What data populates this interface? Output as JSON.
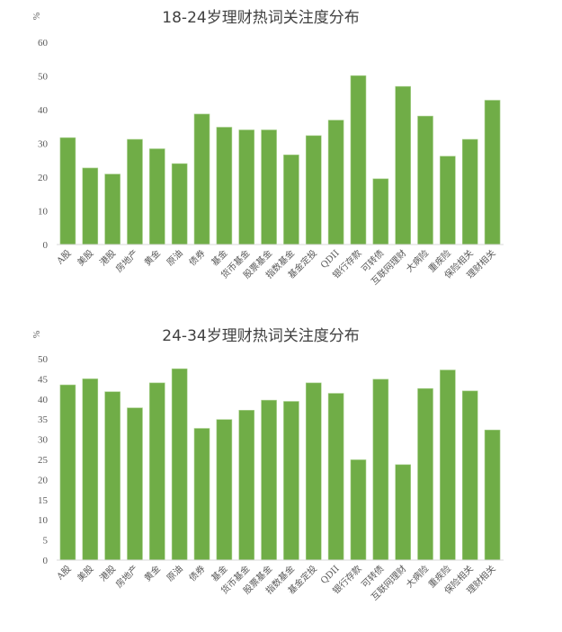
{
  "chart_data": [
    {
      "type": "bar",
      "title": "18-24岁理财热词关注度分布",
      "ylabel": "%",
      "ylim": [
        0,
        60
      ],
      "yticks": [
        0,
        10,
        20,
        30,
        40,
        50,
        60
      ],
      "grid": false,
      "color": "#70AD47",
      "categories": [
        "A股",
        "美股",
        "港股",
        "房地产",
        "黄金",
        "原油",
        "债券",
        "基金",
        "货币基金",
        "股票基金",
        "指数基金",
        "基金定投",
        "QDII",
        "银行存款",
        "可转债",
        "互联网理财",
        "大病险",
        "重疾险",
        "保险相关",
        "理财相关"
      ],
      "values": [
        31.7,
        22.7,
        20.9,
        31.2,
        28.4,
        24.0,
        38.7,
        34.8,
        34.0,
        34.0,
        26.6,
        32.3,
        36.9,
        50.1,
        19.5,
        46.9,
        38.1,
        26.2,
        31.2,
        42.8
      ]
    },
    {
      "type": "bar",
      "title": "24-34岁理财热词关注度分布",
      "ylabel": "%",
      "ylim": [
        0,
        50
      ],
      "yticks": [
        0,
        5,
        10,
        15,
        20,
        25,
        30,
        35,
        40,
        45,
        50
      ],
      "grid": false,
      "color": "#70AD47",
      "categories": [
        "A股",
        "美股",
        "港股",
        "房地产",
        "黄金",
        "原油",
        "债券",
        "基金",
        "货币基金",
        "股票基金",
        "指数基金",
        "基金定投",
        "QDII",
        "银行存款",
        "可转债",
        "互联网理财",
        "大病险",
        "重疾险",
        "保险相关",
        "理财相关"
      ],
      "values": [
        43.5,
        45.0,
        41.8,
        37.8,
        44.0,
        47.5,
        32.7,
        34.9,
        37.2,
        39.7,
        39.4,
        44.0,
        41.4,
        24.9,
        44.9,
        23.7,
        42.6,
        47.2,
        42.0,
        32.3
      ]
    }
  ]
}
